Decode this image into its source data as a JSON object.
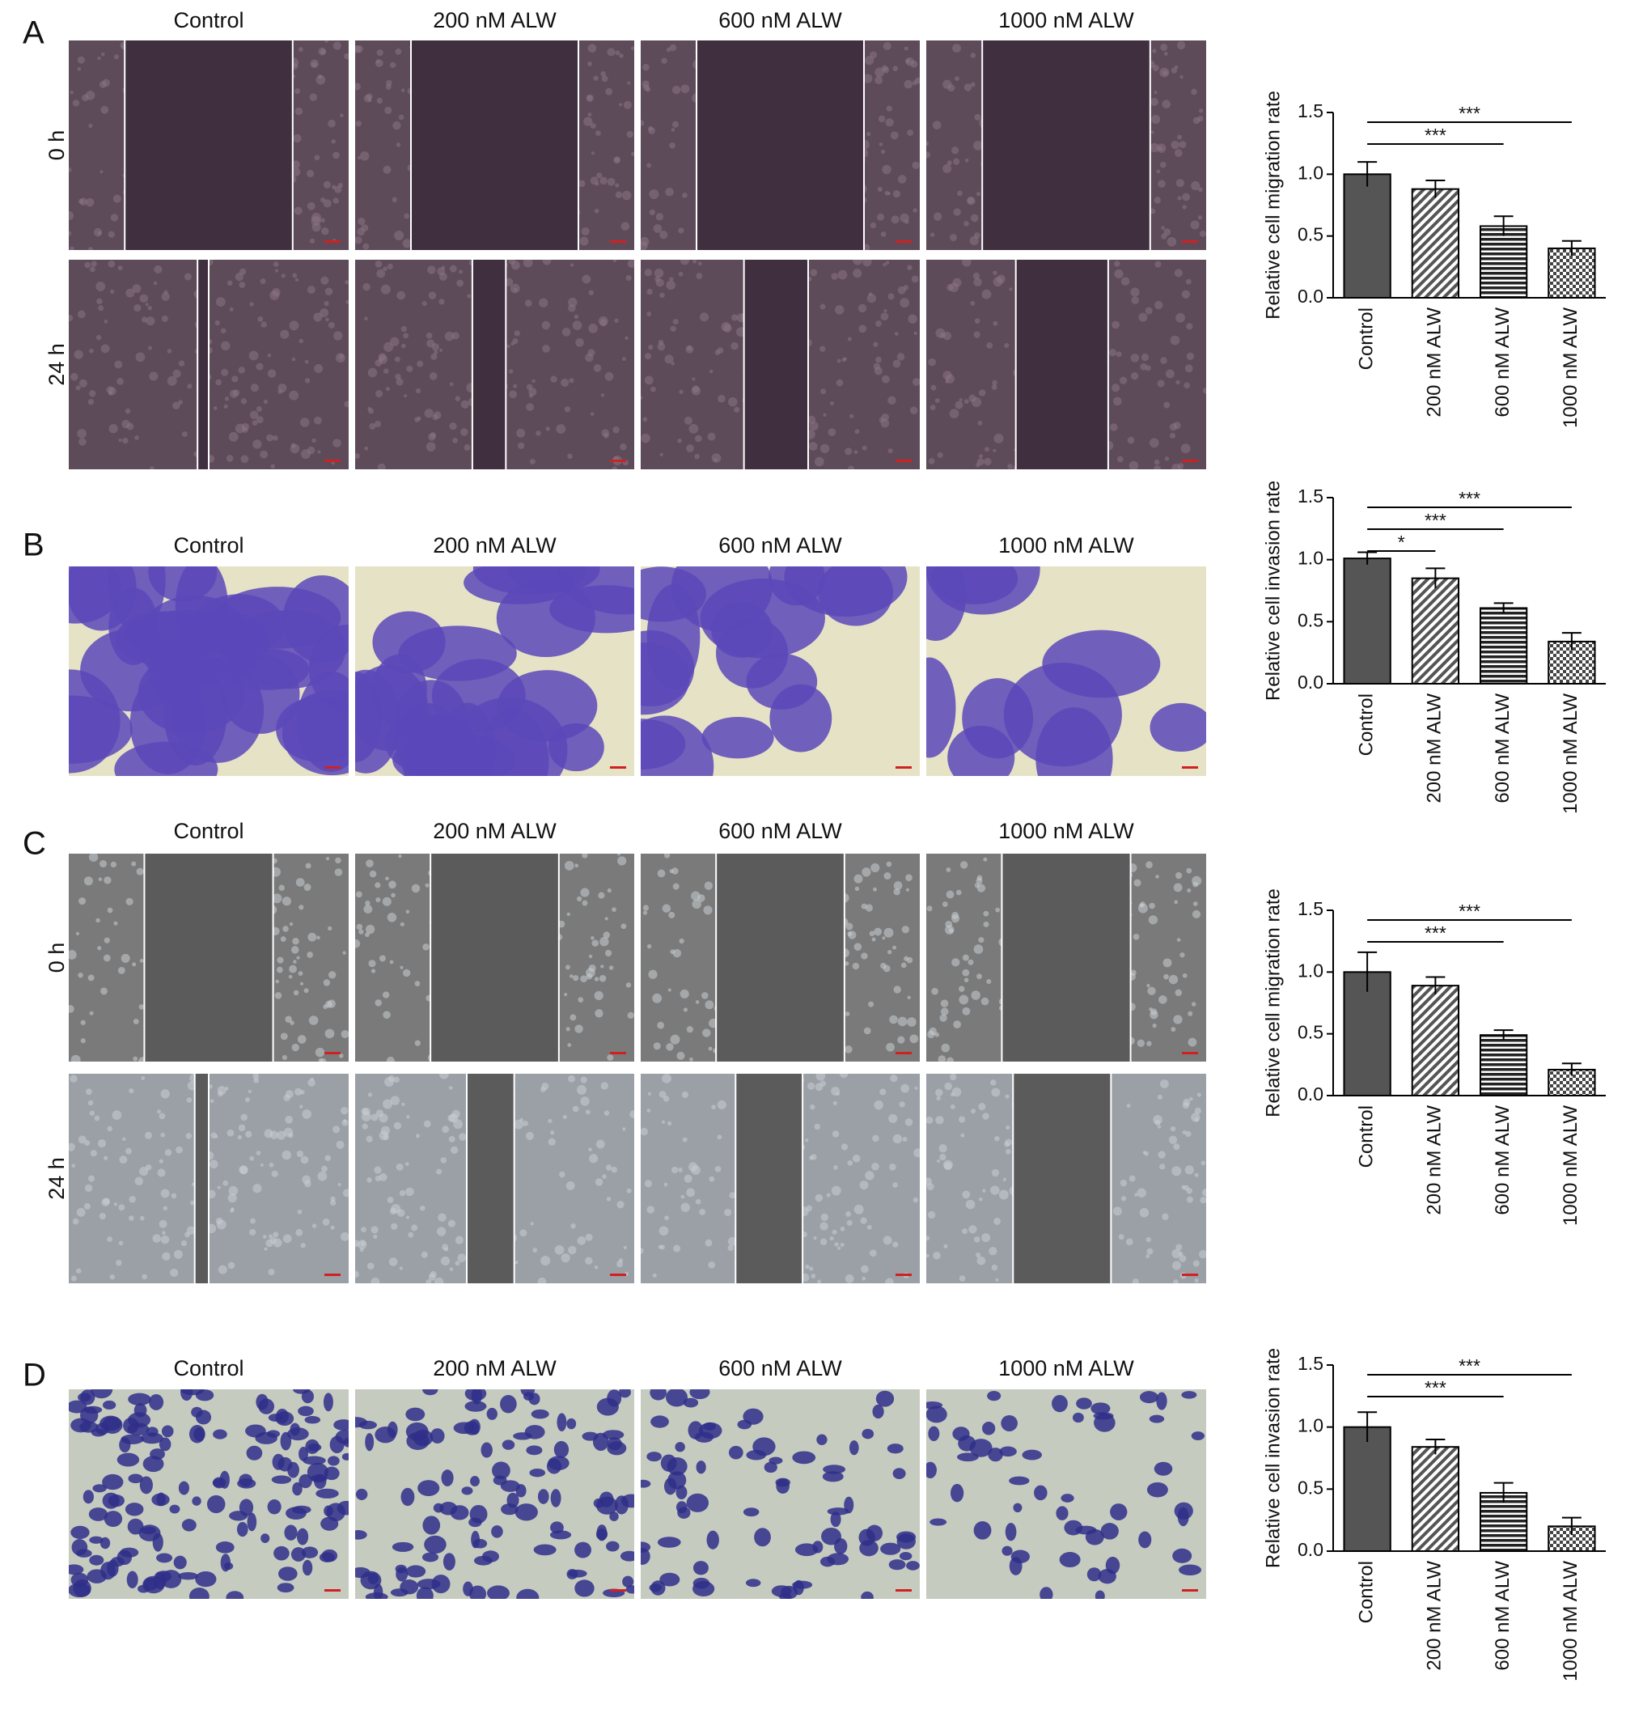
{
  "panels": [
    {
      "letter": "A",
      "columns": [
        "Control",
        "200 nM ALW",
        "600 nM ALW",
        "1000 nM ALW"
      ],
      "rows": [
        "0 h",
        "24 h"
      ]
    },
    {
      "letter": "B",
      "columns": [
        "Control",
        "200 nM ALW",
        "600 nM ALW",
        "1000 nM ALW"
      ]
    },
    {
      "letter": "C",
      "columns": [
        "Control",
        "200 nM ALW",
        "600 nM ALW",
        "1000 nM ALW"
      ],
      "rows": [
        "0 h",
        "24 h"
      ]
    },
    {
      "letter": "D",
      "columns": [
        "Control",
        "200 nM ALW",
        "600 nM ALW",
        "1000 nM ALW"
      ]
    }
  ],
  "chart_data": [
    {
      "type": "bar",
      "ylabel": "Relative cell migration rate",
      "categories": [
        "Control",
        "200 nM ALW",
        "600 nM ALW",
        "1000 nM ALW"
      ],
      "values": [
        1.0,
        0.88,
        0.58,
        0.4
      ],
      "errors": [
        0.1,
        0.07,
        0.08,
        0.06
      ],
      "color": "#555555",
      "patterns": [
        "solid",
        "diagonal",
        "horizontal",
        "checker"
      ],
      "ylim": [
        0,
        1.5
      ],
      "yticks": [
        {
          "value": 0,
          "label": "0.0"
        },
        0.5,
        {
          "value": 1,
          "label": "1.0"
        },
        1.5
      ],
      "significance": [
        {
          "from": 0,
          "to": 2,
          "label": "***"
        },
        {
          "from": 0,
          "to": 3,
          "label": "***"
        }
      ]
    },
    {
      "type": "bar",
      "ylabel": "Relative cell invasion rate",
      "categories": [
        "Control",
        "200 nM ALW",
        "600 nM ALW",
        "1000 nM ALW"
      ],
      "values": [
        1.01,
        0.85,
        0.61,
        0.34
      ],
      "errors": [
        0.05,
        0.08,
        0.04,
        0.07
      ],
      "color": "#555555",
      "patterns": [
        "solid",
        "diagonal",
        "horizontal",
        "checker"
      ],
      "ylim": [
        0,
        1.5
      ],
      "yticks": [
        {
          "value": 0,
          "label": "0.0"
        },
        0.5,
        {
          "value": 1,
          "label": "1.0"
        },
        1.5
      ],
      "significance": [
        {
          "from": 0,
          "to": 1,
          "label": "*"
        },
        {
          "from": 0,
          "to": 2,
          "label": "***"
        },
        {
          "from": 0,
          "to": 3,
          "label": "***"
        }
      ]
    },
    {
      "type": "bar",
      "ylabel": "Relative cell migration rate",
      "categories": [
        "Control",
        "200 nM ALW",
        "600 nM ALW",
        "1000 nM ALW"
      ],
      "values": [
        1.0,
        0.89,
        0.49,
        0.21
      ],
      "errors": [
        0.16,
        0.07,
        0.04,
        0.05
      ],
      "color": "#555555",
      "patterns": [
        "solid",
        "diagonal",
        "horizontal",
        "checker"
      ],
      "ylim": [
        0,
        1.5
      ],
      "yticks": [
        {
          "value": 0,
          "label": "0.0"
        },
        0.5,
        {
          "value": 1,
          "label": "1.0"
        },
        1.5
      ],
      "significance": [
        {
          "from": 0,
          "to": 2,
          "label": "***"
        },
        {
          "from": 0,
          "to": 3,
          "label": "***"
        }
      ]
    },
    {
      "type": "bar",
      "ylabel": "Relative cell invasion rate",
      "categories": [
        "Control",
        "200 nM ALW",
        "600 nM ALW",
        "1000 nM ALW"
      ],
      "values": [
        1.0,
        0.84,
        0.47,
        0.2
      ],
      "errors": [
        0.12,
        0.06,
        0.08,
        0.07
      ],
      "color": "#555555",
      "patterns": [
        "solid",
        "diagonal",
        "horizontal",
        "checker"
      ],
      "ylim": [
        0,
        1.5
      ],
      "yticks": [
        {
          "value": 0,
          "label": "0.0"
        },
        0.5,
        {
          "value": 1,
          "label": "1.0"
        },
        1.5
      ],
      "significance": [
        {
          "from": 0,
          "to": 2,
          "label": "***"
        },
        {
          "from": 0,
          "to": 3,
          "label": "***"
        }
      ]
    }
  ]
}
